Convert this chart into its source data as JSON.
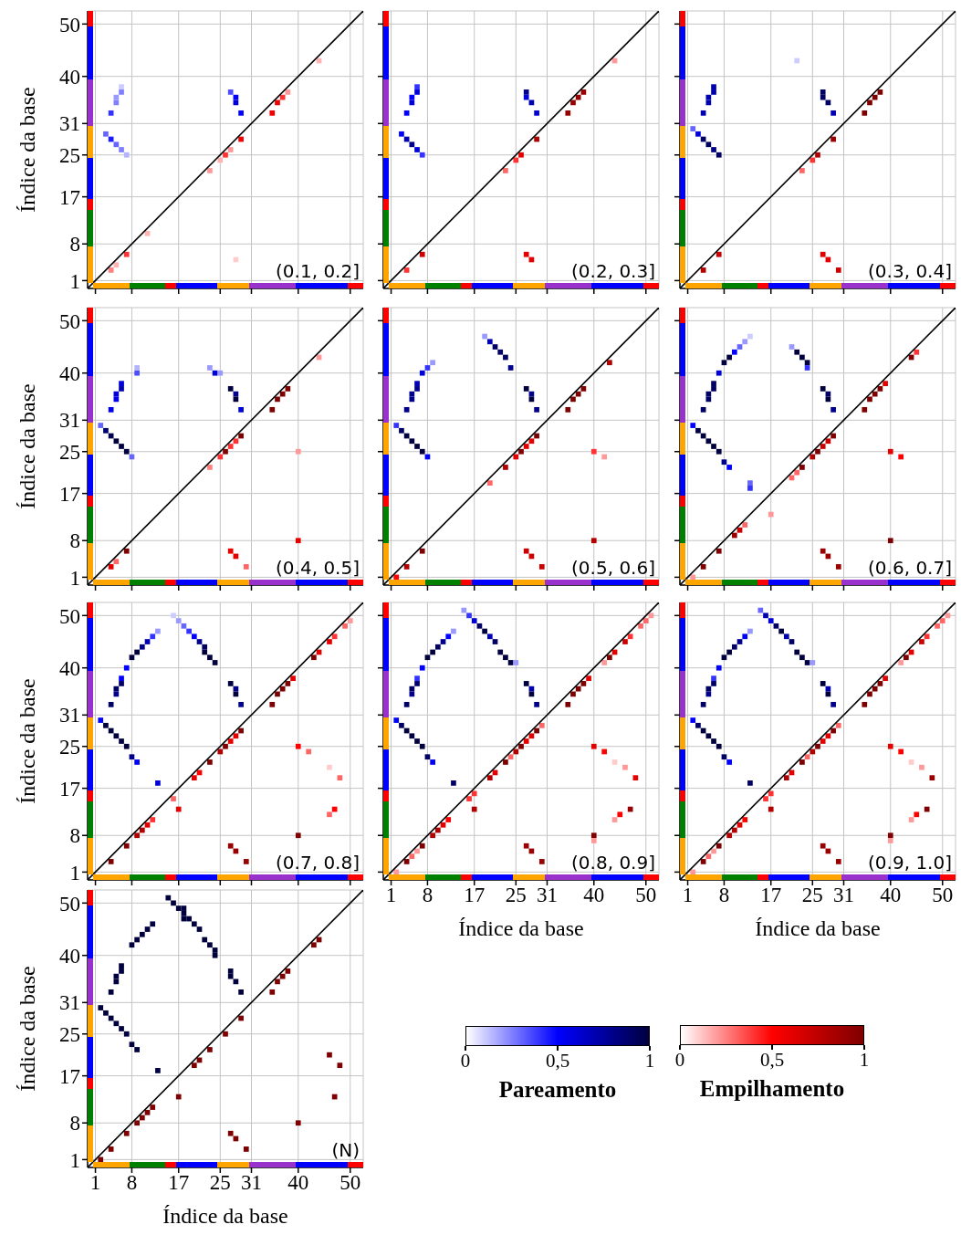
{
  "chart_data": [
    {
      "type": "scatter",
      "marker": "square",
      "annotations": [
        "(0.1, 0.2]"
      ],
      "ylabel": "Índice da base",
      "xlim": [
        -0.5,
        52.5
      ],
      "ylim": [
        -0.5,
        52.5
      ],
      "xticks": [
        1,
        8,
        17,
        25,
        31,
        40,
        50
      ],
      "yticks": [
        1,
        8,
        17,
        25,
        31,
        40,
        50
      ],
      "grid": true,
      "tick_labels": "y",
      "series": [
        {
          "x": [
            3,
            4,
            5,
            6,
            7,
            4,
            5,
            5,
            6,
            6,
            27,
            28,
            28,
            29
          ],
          "values": [
            29,
            28,
            27,
            26,
            25,
            33,
            35,
            36,
            37,
            38,
            37,
            36,
            35,
            33
          ],
          "colors": [
            "#6666ff",
            "#1a1aff",
            "#6666ff",
            "#8080ff",
            "#b3b3ff",
            "#3333ff",
            "#8080ff",
            "#9999ff",
            "#8080ff",
            "#ccccff",
            "#4d4dff",
            "#0000ff",
            "#0000d9",
            "#0000ff"
          ]
        },
        {
          "x": [
            4,
            5,
            7,
            11,
            23,
            25,
            26,
            27,
            29,
            35,
            36,
            37,
            38,
            44,
            28
          ],
          "values": [
            3,
            4,
            6,
            10,
            22,
            24,
            25,
            26,
            28,
            33,
            35,
            36,
            37,
            43,
            5
          ],
          "colors": [
            "#ff8080",
            "#ffb3b3",
            "#ff3333",
            "#ffb3b3",
            "#ff9999",
            "#ffb3b3",
            "#ff3333",
            "#ff9999",
            "#f20000",
            "#f20000",
            "#f20000",
            "#ff3333",
            "#ff9999",
            "#ffb3b3",
            "#ffcccc"
          ]
        },
        {
          "type": "line",
          "marker": "none",
          "color": "#000000",
          "x": [
            -0.5,
            52.5
          ],
          "values": [
            -0.5,
            52.5
          ]
        }
      ]
    },
    {
      "type": "scatter",
      "marker": "square",
      "annotations": [
        "(0.2, 0.3]"
      ],
      "xlim": [
        -0.5,
        52.5
      ],
      "ylim": [
        -0.5,
        52.5
      ],
      "xticks": [
        1,
        8,
        17,
        25,
        31,
        40,
        50
      ],
      "yticks": [
        1,
        8,
        17,
        25,
        31,
        40,
        50
      ],
      "grid": true,
      "tick_labels": false,
      "series": [
        {
          "x": [
            3,
            4,
            5,
            6,
            7,
            4,
            5,
            5,
            6,
            6,
            27,
            27,
            28,
            29
          ],
          "values": [
            29,
            28,
            27,
            26,
            25,
            33,
            35,
            36,
            37,
            38,
            37,
            36,
            35,
            33
          ],
          "colors": [
            "#0000ff",
            "#0000b2",
            "#00008c",
            "#0000d9",
            "#3333ff",
            "#0000ff",
            "#0000d9",
            "#0000ff",
            "#0000d9",
            "#3333ff",
            "#00008c",
            "#0000d9",
            "#0000b2",
            "#0000d9"
          ]
        },
        {
          "x": [
            4,
            7,
            23,
            25,
            26,
            29,
            35,
            36,
            37,
            38,
            44,
            27,
            28
          ],
          "values": [
            3,
            6,
            22,
            24,
            25,
            28,
            33,
            35,
            36,
            37,
            43,
            6,
            5
          ],
          "colors": [
            "#ff3333",
            "#cc0000",
            "#ff6666",
            "#ff3333",
            "#e50000",
            "#b20000",
            "#990000",
            "#990000",
            "#990000",
            "#990000",
            "#ff9999",
            "#e50000",
            "#e50000"
          ]
        },
        {
          "type": "line",
          "marker": "none",
          "color": "#000000",
          "x": [
            -0.5,
            52.5
          ],
          "values": [
            -0.5,
            52.5
          ]
        }
      ]
    },
    {
      "type": "scatter",
      "marker": "square",
      "annotations": [
        "(0.3, 0.4]"
      ],
      "xlim": [
        -0.5,
        52.5
      ],
      "ylim": [
        -0.5,
        52.5
      ],
      "xticks": [
        1,
        8,
        17,
        25,
        31,
        40,
        50
      ],
      "yticks": [
        1,
        8,
        17,
        25,
        31,
        40,
        50
      ],
      "grid": true,
      "tick_labels": false,
      "series": [
        {
          "x": [
            2,
            3,
            4,
            5,
            6,
            7,
            4,
            5,
            5,
            6,
            6,
            27,
            27,
            28,
            29,
            22
          ],
          "values": [
            30,
            29,
            28,
            27,
            26,
            25,
            33,
            35,
            36,
            37,
            38,
            37,
            36,
            35,
            33,
            43
          ],
          "colors": [
            "#6666ff",
            "#0000d9",
            "#000065",
            "#000065",
            "#00008c",
            "#000065",
            "#0000b2",
            "#0000b2",
            "#0000b2",
            "#0000b2",
            "#0000b2",
            "#000065",
            "#000065",
            "#000065",
            "#0000b2",
            "#ccccff"
          ]
        },
        {
          "x": [
            4,
            7,
            23,
            25,
            26,
            29,
            35,
            36,
            37,
            38,
            27,
            28,
            30
          ],
          "values": [
            3,
            6,
            22,
            24,
            25,
            28,
            33,
            35,
            36,
            37,
            6,
            5,
            3
          ],
          "colors": [
            "#b20000",
            "#cc0000",
            "#ff6666",
            "#ff3333",
            "#b20000",
            "#990000",
            "#7f0000",
            "#7f0000",
            "#7f0000",
            "#7f0000",
            "#e50000",
            "#e50000",
            "#cc0000"
          ]
        },
        {
          "type": "line",
          "marker": "none",
          "color": "#000000",
          "x": [
            -0.5,
            52.5
          ],
          "values": [
            -0.5,
            52.5
          ]
        }
      ]
    },
    {
      "type": "scatter",
      "marker": "square",
      "annotations": [
        "(0.4, 0.5]"
      ],
      "ylabel": "Índice da base",
      "xlim": [
        -0.5,
        52.5
      ],
      "ylim": [
        -0.5,
        52.5
      ],
      "xticks": [
        1,
        8,
        17,
        25,
        31,
        40,
        50
      ],
      "yticks": [
        1,
        8,
        17,
        25,
        31,
        40,
        50
      ],
      "grid": true,
      "tick_labels": "y",
      "series": [
        {
          "x": [
            2,
            3,
            4,
            5,
            6,
            7,
            8,
            4,
            5,
            5,
            6,
            6,
            9,
            9,
            27,
            28,
            28,
            29,
            24,
            23,
            25
          ],
          "values": [
            30,
            29,
            28,
            27,
            26,
            25,
            24,
            33,
            35,
            36,
            37,
            38,
            40,
            41,
            37,
            36,
            35,
            33,
            40,
            41,
            40
          ],
          "colors": [
            "#6666ff",
            "#000079",
            "#000052",
            "#00003f",
            "#00003f",
            "#00003f",
            "#6666ff",
            "#0000ec",
            "#0000ec",
            "#0000d9",
            "#0000b2",
            "#0000d9",
            "#4d4dff",
            "#b3b3ff",
            "#00003f",
            "#00008c",
            "#00003f",
            "#0000d9",
            "#0000d9",
            "#9999ff",
            "#9999ff"
          ]
        },
        {
          "x": [
            4,
            5,
            7,
            23,
            25,
            26,
            27,
            28,
            29,
            35,
            36,
            37,
            38,
            44,
            27,
            28,
            30,
            40,
            40
          ],
          "values": [
            3,
            4,
            6,
            22,
            24,
            25,
            26,
            27,
            28,
            33,
            35,
            36,
            37,
            43,
            6,
            5,
            3,
            8,
            25
          ],
          "colors": [
            "#e50000",
            "#ff6666",
            "#7f0000",
            "#ff8080",
            "#ff3333",
            "#7f0000",
            "#ff3333",
            "#ff3333",
            "#7f0000",
            "#7f0000",
            "#7f0000",
            "#7f0000",
            "#7f0000",
            "#ff9999",
            "#e50000",
            "#e50000",
            "#ff6666",
            "#e50000",
            "#ff9999"
          ]
        },
        {
          "type": "line",
          "marker": "none",
          "color": "#000000",
          "x": [
            -0.5,
            52.5
          ],
          "values": [
            -0.5,
            52.5
          ]
        }
      ]
    },
    {
      "type": "scatter",
      "marker": "square",
      "annotations": [
        "(0.5, 0.6]"
      ],
      "xlim": [
        -0.5,
        52.5
      ],
      "ylim": [
        -0.5,
        52.5
      ],
      "xticks": [
        1,
        8,
        17,
        25,
        31,
        40,
        50
      ],
      "yticks": [
        1,
        8,
        17,
        25,
        31,
        40,
        50
      ],
      "grid": true,
      "tick_labels": false,
      "series": [
        {
          "x": [
            2,
            3,
            4,
            5,
            6,
            7,
            8,
            4,
            5,
            5,
            6,
            6,
            7,
            8,
            9,
            27,
            28,
            28,
            29,
            20,
            21,
            22,
            23,
            24,
            19
          ],
          "values": [
            30,
            29,
            28,
            27,
            26,
            25,
            24,
            33,
            35,
            36,
            37,
            38,
            40,
            41,
            42,
            37,
            36,
            35,
            33,
            46,
            45,
            44,
            43,
            41,
            47
          ],
          "colors": [
            "#3333ff",
            "#000065",
            "#00003f",
            "#00003f",
            "#00003f",
            "#00003f",
            "#0000ff",
            "#00008c",
            "#00008c",
            "#00008c",
            "#00008c",
            "#0000b2",
            "#0000d9",
            "#3333ff",
            "#9999ff",
            "#00003f",
            "#00008c",
            "#00003f",
            "#00008c",
            "#0000b2",
            "#000065",
            "#000065",
            "#000065",
            "#00008c",
            "#9999ff"
          ]
        },
        {
          "x": [
            2,
            4,
            7,
            20,
            23,
            25,
            26,
            27,
            28,
            29,
            35,
            36,
            37,
            38,
            43,
            27,
            28,
            30,
            40,
            40,
            42
          ],
          "values": [
            1,
            3,
            6,
            19,
            22,
            24,
            25,
            26,
            27,
            28,
            33,
            35,
            36,
            37,
            42,
            6,
            5,
            3,
            8,
            25,
            24
          ],
          "colors": [
            "#ff0000",
            "#b20000",
            "#7f0000",
            "#ff6666",
            "#b20000",
            "#e50000",
            "#7f0000",
            "#e50000",
            "#e50000",
            "#7f0000",
            "#7f0000",
            "#7f0000",
            "#7f0000",
            "#7f0000",
            "#b20000",
            "#cc0000",
            "#cc0000",
            "#cc0000",
            "#b20000",
            "#ff3333",
            "#ff9999"
          ]
        },
        {
          "type": "line",
          "marker": "none",
          "color": "#000000",
          "x": [
            -0.5,
            52.5
          ],
          "values": [
            -0.5,
            52.5
          ]
        }
      ]
    },
    {
      "type": "scatter",
      "marker": "square",
      "annotations": [
        "(0.6, 0.7]"
      ],
      "xlim": [
        -0.5,
        52.5
      ],
      "ylim": [
        -0.5,
        52.5
      ],
      "xticks": [
        1,
        8,
        17,
        25,
        31,
        40,
        50
      ],
      "yticks": [
        1,
        8,
        17,
        25,
        31,
        40,
        50
      ],
      "grid": true,
      "tick_labels": false,
      "series": [
        {
          "x": [
            2,
            3,
            4,
            5,
            6,
            7,
            8,
            9,
            13,
            13,
            4,
            5,
            5,
            6,
            6,
            7,
            8,
            9,
            10,
            11,
            12,
            13,
            21,
            22,
            23,
            24,
            24,
            27,
            28,
            28,
            29
          ],
          "values": [
            30,
            29,
            28,
            27,
            26,
            25,
            23,
            22,
            18,
            19,
            33,
            35,
            36,
            37,
            38,
            40,
            42,
            43,
            44,
            45,
            46,
            47,
            45,
            44,
            43,
            42,
            41,
            37,
            36,
            35,
            33
          ],
          "colors": [
            "#0000ff",
            "#00003f",
            "#00003f",
            "#00003f",
            "#00003f",
            "#00003f",
            "#00008c",
            "#0000ff",
            "#3333ff",
            "#6666ff",
            "#000065",
            "#000065",
            "#000065",
            "#000065",
            "#000065",
            "#0000d9",
            "#00003f",
            "#00003f",
            "#0000ff",
            "#6666ff",
            "#9999ff",
            "#ccccff",
            "#9999ff",
            "#00003f",
            "#00003f",
            "#00003f",
            "#3333ff",
            "#00003f",
            "#000065",
            "#00003f",
            "#00008c"
          ]
        },
        {
          "x": [
            2,
            4,
            7,
            10,
            11,
            12,
            17,
            21,
            22,
            23,
            25,
            26,
            27,
            28,
            29,
            35,
            36,
            37,
            38,
            39,
            44,
            45,
            27,
            28,
            30,
            40,
            40,
            42
          ],
          "values": [
            1,
            3,
            6,
            9,
            10,
            11,
            13,
            20,
            21,
            22,
            24,
            25,
            26,
            27,
            28,
            33,
            35,
            36,
            37,
            38,
            43,
            44,
            6,
            5,
            3,
            8,
            25,
            24
          ],
          "colors": [
            "#ff9999",
            "#7f0000",
            "#7f0000",
            "#990000",
            "#cc0000",
            "#ff6666",
            "#ff9999",
            "#ff6666",
            "#ff6666",
            "#7f0000",
            "#b20000",
            "#7f0000",
            "#cc0000",
            "#cc0000",
            "#7f0000",
            "#7f0000",
            "#7f0000",
            "#7f0000",
            "#7f0000",
            "#e50000",
            "#7f0000",
            "#ff3333",
            "#990000",
            "#990000",
            "#990000",
            "#7f0000",
            "#e50000",
            "#ff0000"
          ]
        },
        {
          "type": "line",
          "marker": "none",
          "color": "#000000",
          "x": [
            -0.5,
            52.5
          ],
          "values": [
            -0.5,
            52.5
          ]
        }
      ]
    },
    {
      "type": "scatter",
      "marker": "square",
      "annotations": [
        "(0.7, 0.8]"
      ],
      "ylabel": "Índice da base",
      "xlim": [
        -0.5,
        52.5
      ],
      "ylim": [
        -0.5,
        52.5
      ],
      "xticks": [
        1,
        8,
        17,
        25,
        31,
        40,
        50
      ],
      "yticks": [
        1,
        8,
        17,
        25,
        31,
        40,
        50
      ],
      "grid": true,
      "tick_labels": "y",
      "series": [
        {
          "x": [
            2,
            3,
            4,
            5,
            6,
            7,
            8,
            9,
            13,
            4,
            5,
            5,
            6,
            6,
            7,
            8,
            9,
            10,
            11,
            12,
            13,
            16,
            17,
            18,
            19,
            20,
            21,
            22,
            22,
            23,
            24,
            27,
            28,
            28,
            29
          ],
          "values": [
            30,
            29,
            28,
            27,
            26,
            25,
            23,
            22,
            18,
            33,
            35,
            36,
            37,
            38,
            40,
            42,
            43,
            44,
            45,
            46,
            47,
            50,
            49,
            48,
            47,
            46,
            45,
            44,
            43,
            42,
            41,
            37,
            36,
            35,
            33
          ],
          "colors": [
            "#0000ff",
            "#00003f",
            "#00003f",
            "#00003f",
            "#00003f",
            "#00003f",
            "#00008c",
            "#0000ff",
            "#0000d9",
            "#000065",
            "#00008c",
            "#000065",
            "#000065",
            "#0000ff",
            "#0000ff",
            "#00003f",
            "#00003f",
            "#00008c",
            "#0000b2",
            "#3333ff",
            "#9999ff",
            "#ccccff",
            "#9999ff",
            "#6666ff",
            "#3333ff",
            "#0000ff",
            "#00008c",
            "#000065",
            "#00003f",
            "#00003f",
            "#00003f",
            "#00003f",
            "#00008c",
            "#00003f",
            "#00008c"
          ]
        },
        {
          "x": [
            4,
            7,
            9,
            10,
            11,
            12,
            17,
            16,
            20,
            21,
            23,
            25,
            26,
            27,
            28,
            29,
            35,
            36,
            37,
            38,
            39,
            43,
            44,
            46,
            47,
            49,
            50,
            27,
            28,
            30,
            40,
            40,
            42,
            48,
            46,
            47,
            46
          ],
          "values": [
            3,
            6,
            8,
            9,
            10,
            11,
            13,
            15,
            19,
            20,
            22,
            24,
            25,
            26,
            27,
            28,
            33,
            35,
            36,
            37,
            38,
            42,
            43,
            45,
            46,
            48,
            49,
            6,
            5,
            3,
            8,
            25,
            24,
            19,
            21,
            13,
            12
          ],
          "colors": [
            "#7f0000",
            "#7f0000",
            "#b20000",
            "#b20000",
            "#e50000",
            "#ff3333",
            "#e50000",
            "#ff6666",
            "#e50000",
            "#ff0000",
            "#7f0000",
            "#b20000",
            "#7f0000",
            "#e50000",
            "#e50000",
            "#7f0000",
            "#7f0000",
            "#7f0000",
            "#7f0000",
            "#7f0000",
            "#e50000",
            "#7f0000",
            "#e50000",
            "#e50000",
            "#ff3333",
            "#ff6666",
            "#ff9999",
            "#990000",
            "#990000",
            "#990000",
            "#7f0000",
            "#ff0000",
            "#ff6666",
            "#ff6666",
            "#ffcccc",
            "#ff0000",
            "#ff6666"
          ]
        },
        {
          "type": "line",
          "marker": "none",
          "color": "#000000",
          "x": [
            -0.5,
            52.5
          ],
          "values": [
            -0.5,
            52.5
          ]
        }
      ]
    },
    {
      "type": "scatter",
      "marker": "square",
      "annotations": [
        "(0.8, 0.9]"
      ],
      "xlabel": "Índice da base",
      "xlim": [
        -0.5,
        52.5
      ],
      "ylim": [
        -0.5,
        52.5
      ],
      "xticks": [
        1,
        8,
        17,
        25,
        31,
        40,
        50
      ],
      "yticks": [
        1,
        8,
        17,
        25,
        31,
        40,
        50
      ],
      "grid": true,
      "tick_labels": "x",
      "series": [
        {
          "x": [
            2,
            3,
            4,
            5,
            6,
            7,
            8,
            9,
            13,
            4,
            5,
            5,
            6,
            6,
            7,
            8,
            9,
            10,
            11,
            12,
            13,
            15,
            16,
            17,
            18,
            19,
            20,
            21,
            22,
            23,
            24,
            25,
            27,
            28,
            28,
            29
          ],
          "values": [
            30,
            29,
            28,
            27,
            26,
            25,
            23,
            22,
            18,
            33,
            35,
            36,
            37,
            38,
            40,
            42,
            43,
            44,
            45,
            46,
            47,
            51,
            50,
            49,
            48,
            47,
            46,
            45,
            43,
            42,
            41,
            41,
            37,
            36,
            35,
            33
          ],
          "colors": [
            "#0000ff",
            "#000065",
            "#00003f",
            "#00003f",
            "#00003f",
            "#00003f",
            "#000065",
            "#0000ff",
            "#000065",
            "#000065",
            "#00008c",
            "#000065",
            "#000065",
            "#3333ff",
            "#0000ff",
            "#00003f",
            "#00003f",
            "#000065",
            "#00008c",
            "#0000ff",
            "#9999ff",
            "#9999ff",
            "#3333ff",
            "#0000d9",
            "#000065",
            "#00003f",
            "#0000b2",
            "#000065",
            "#00003f",
            "#00003f",
            "#00003f",
            "#9999ff",
            "#00003f",
            "#0000b2",
            "#00003f",
            "#00008c"
          ]
        },
        {
          "x": [
            2,
            4,
            5,
            6,
            7,
            9,
            10,
            11,
            12,
            17,
            16,
            17,
            20,
            21,
            23,
            24,
            25,
            26,
            27,
            28,
            29,
            30,
            35,
            36,
            37,
            38,
            39,
            42,
            43,
            44,
            46,
            47,
            49,
            50,
            51,
            27,
            28,
            30,
            40,
            40,
            40,
            42,
            44,
            46,
            48,
            47,
            45,
            44
          ],
          "values": [
            1,
            3,
            4,
            5,
            6,
            8,
            9,
            10,
            11,
            13,
            15,
            16,
            19,
            20,
            22,
            23,
            24,
            25,
            26,
            27,
            28,
            29,
            33,
            35,
            36,
            37,
            38,
            41,
            42,
            43,
            45,
            46,
            48,
            49,
            50,
            6,
            5,
            3,
            8,
            7,
            25,
            24,
            22,
            21,
            19,
            13,
            12,
            11
          ],
          "colors": [
            "#ff9999",
            "#7f0000",
            "#ff6666",
            "#ff9999",
            "#7f0000",
            "#b20000",
            "#b20000",
            "#e50000",
            "#ff0000",
            "#b20000",
            "#ff3333",
            "#ff3333",
            "#b20000",
            "#e50000",
            "#7f0000",
            "#ff6666",
            "#b20000",
            "#7f0000",
            "#e50000",
            "#e50000",
            "#7f0000",
            "#ff6666",
            "#7f0000",
            "#7f0000",
            "#7f0000",
            "#7f0000",
            "#e50000",
            "#ff9999",
            "#7f0000",
            "#e50000",
            "#cc0000",
            "#ff3333",
            "#ff6666",
            "#ff6666",
            "#ff9999",
            "#990000",
            "#990000",
            "#990000",
            "#7f0000",
            "#ff9999",
            "#e50000",
            "#ff0000",
            "#ffcccc",
            "#ff9999",
            "#e50000",
            "#990000",
            "#ff0000",
            "#ff9999"
          ]
        },
        {
          "type": "line",
          "marker": "none",
          "color": "#000000",
          "x": [
            -0.5,
            52.5
          ],
          "values": [
            -0.5,
            52.5
          ]
        }
      ]
    },
    {
      "type": "scatter",
      "marker": "square",
      "annotations": [
        "(0.9, 1.0]"
      ],
      "xlabel": "Índice da base",
      "xlim": [
        -0.5,
        52.5
      ],
      "ylim": [
        -0.5,
        52.5
      ],
      "xticks": [
        1,
        8,
        17,
        25,
        31,
        40,
        50
      ],
      "yticks": [
        1,
        8,
        17,
        25,
        31,
        40,
        50
      ],
      "grid": true,
      "tick_labels": "x",
      "series": [
        {
          "x": [
            2,
            3,
            4,
            5,
            6,
            7,
            8,
            9,
            13,
            4,
            5,
            5,
            6,
            6,
            7,
            8,
            9,
            10,
            11,
            12,
            13,
            15,
            16,
            17,
            18,
            19,
            20,
            21,
            22,
            23,
            24,
            25,
            27,
            28,
            28,
            29
          ],
          "values": [
            30,
            29,
            28,
            27,
            26,
            25,
            23,
            22,
            18,
            33,
            35,
            36,
            37,
            38,
            40,
            42,
            43,
            44,
            45,
            46,
            47,
            51,
            50,
            49,
            48,
            47,
            46,
            45,
            43,
            42,
            41,
            41,
            37,
            36,
            35,
            33
          ],
          "colors": [
            "#0000ff",
            "#000065",
            "#00003f",
            "#00003f",
            "#00003f",
            "#00003f",
            "#000065",
            "#0000ff",
            "#000065",
            "#000065",
            "#00008c",
            "#000065",
            "#000065",
            "#3333ff",
            "#0000ff",
            "#00003f",
            "#00003f",
            "#000065",
            "#00008c",
            "#0000ff",
            "#9999ff",
            "#6666ff",
            "#0000b2",
            "#0000d9",
            "#000065",
            "#00003f",
            "#0000b2",
            "#000065",
            "#00003f",
            "#00003f",
            "#00003f",
            "#9999ff",
            "#00003f",
            "#0000b2",
            "#00003f",
            "#00008c"
          ]
        },
        {
          "x": [
            2,
            4,
            5,
            6,
            7,
            9,
            10,
            11,
            12,
            17,
            16,
            17,
            20,
            21,
            23,
            24,
            25,
            26,
            27,
            28,
            29,
            30,
            35,
            36,
            37,
            38,
            39,
            42,
            43,
            44,
            46,
            47,
            49,
            50,
            51,
            27,
            28,
            30,
            40,
            40,
            40,
            42,
            44,
            46,
            48,
            47,
            45,
            44
          ],
          "values": [
            1,
            3,
            4,
            5,
            6,
            8,
            9,
            10,
            11,
            13,
            15,
            16,
            19,
            20,
            22,
            23,
            24,
            25,
            26,
            27,
            28,
            29,
            33,
            35,
            36,
            37,
            38,
            41,
            42,
            43,
            45,
            46,
            48,
            49,
            50,
            6,
            5,
            3,
            8,
            7,
            25,
            24,
            22,
            21,
            19,
            13,
            12,
            11
          ],
          "colors": [
            "#ff9999",
            "#7f0000",
            "#ff6666",
            "#ff9999",
            "#7f0000",
            "#b20000",
            "#b20000",
            "#e50000",
            "#ff0000",
            "#b20000",
            "#ff3333",
            "#ff3333",
            "#b20000",
            "#e50000",
            "#7f0000",
            "#ff6666",
            "#b20000",
            "#7f0000",
            "#e50000",
            "#e50000",
            "#7f0000",
            "#ff6666",
            "#7f0000",
            "#7f0000",
            "#7f0000",
            "#7f0000",
            "#e50000",
            "#ff9999",
            "#7f0000",
            "#e50000",
            "#cc0000",
            "#ff3333",
            "#ff6666",
            "#ff6666",
            "#ff9999",
            "#990000",
            "#990000",
            "#990000",
            "#7f0000",
            "#ff9999",
            "#e50000",
            "#ff0000",
            "#ffcccc",
            "#ff9999",
            "#990000",
            "#7f0000",
            "#ff0000",
            "#ff9999"
          ]
        },
        {
          "type": "line",
          "marker": "none",
          "color": "#000000",
          "x": [
            -0.5,
            52.5
          ],
          "values": [
            -0.5,
            52.5
          ]
        }
      ]
    },
    {
      "type": "scatter",
      "marker": "square",
      "annotations": [
        "(N)"
      ],
      "xlabel": "Índice da base",
      "ylabel": "Índice da base",
      "xlim": [
        -0.5,
        52.5
      ],
      "ylim": [
        -0.5,
        52.5
      ],
      "xticks": [
        1,
        8,
        17,
        25,
        31,
        40,
        50
      ],
      "yticks": [
        1,
        8,
        17,
        25,
        31,
        40,
        50
      ],
      "grid": true,
      "series": [
        {
          "color": "#00003f",
          "x": [
            15,
            16,
            17,
            18,
            18,
            18,
            19,
            20,
            21,
            22,
            23,
            24,
            24,
            8,
            9,
            10,
            11,
            12,
            6,
            6,
            5,
            5,
            4,
            27,
            27,
            28,
            29,
            2,
            3,
            4,
            5,
            6,
            7,
            8,
            9,
            13
          ],
          "values": [
            51,
            50,
            49,
            49,
            48,
            47,
            47,
            46,
            45,
            43,
            42,
            41,
            40,
            42,
            43,
            44,
            45,
            46,
            38,
            37,
            36,
            35,
            33,
            37,
            36,
            35,
            33,
            30,
            29,
            28,
            27,
            26,
            25,
            23,
            22,
            18
          ]
        },
        {
          "color": "#7f0000",
          "x": [
            2,
            4,
            7,
            9,
            10,
            11,
            12,
            17,
            20,
            21,
            23,
            26,
            29,
            35,
            36,
            37,
            38,
            43,
            44,
            27,
            28,
            30,
            40,
            46,
            48,
            47
          ],
          "values": [
            1,
            3,
            6,
            8,
            9,
            10,
            11,
            13,
            19,
            20,
            22,
            25,
            28,
            33,
            35,
            36,
            37,
            42,
            43,
            6,
            5,
            3,
            8,
            21,
            19,
            13
          ]
        },
        {
          "type": "line",
          "marker": "none",
          "color": "#000000",
          "x": [
            -0.5,
            52.5
          ],
          "values": [
            -0.5,
            52.5
          ]
        }
      ]
    },
    {
      "type": "other",
      "clabel": "Pareamento",
      "annotations": [
        "0",
        "0,5",
        "1"
      ],
      "colors": [
        "#ffffff",
        "#0000ff",
        "#00003f"
      ]
    },
    {
      "type": "other",
      "clabel": "Empilhamento",
      "annotations": [
        "0",
        "0,5",
        "1"
      ],
      "colors": [
        "#ffffff",
        "#ff0000",
        "#7f0000"
      ]
    }
  ]
}
